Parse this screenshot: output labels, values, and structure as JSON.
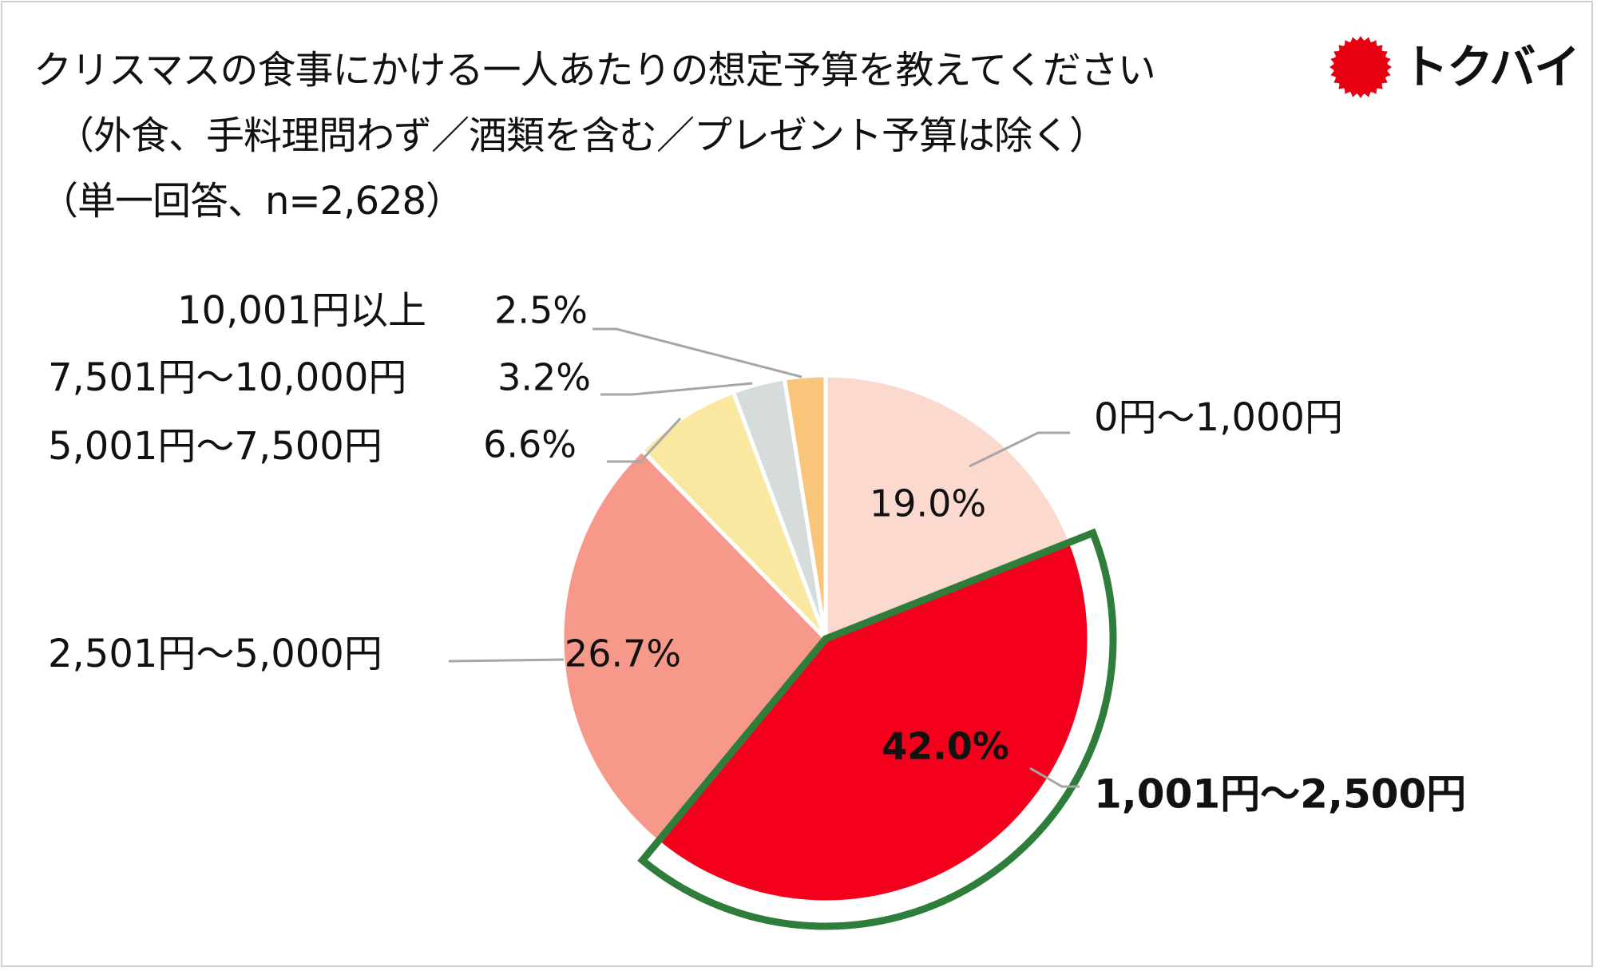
{
  "title_lines": [
    "クリスマスの食事にかける一人あたりの想定予算を教えてください",
    "（外食、手料理問わず／酒類を含む／プレゼント予算は除く）",
    "（単一回答、n=2,628）"
  ],
  "logo": {
    "text": "トクバイ",
    "mark_color": "#e60012"
  },
  "highlight_color": "#2e7d3a",
  "chart_data": {
    "type": "pie",
    "start_angle": "12 o'clock",
    "direction": "clockwise",
    "slices": [
      {
        "label": "0円～1,000円",
        "value": 19.0,
        "value_label": "19.0%",
        "color": "#fcd9cf"
      },
      {
        "label": "1,001円～2,500円",
        "value": 42.0,
        "value_label": "42.0%",
        "color": "#f5001c",
        "highlighted": true
      },
      {
        "label": "2,501円～5,000円",
        "value": 26.7,
        "value_label": "26.7%",
        "color": "#f7998a"
      },
      {
        "label": "5,001円～7,500円",
        "value": 6.6,
        "value_label": "6.6%",
        "color": "#fbe8a0"
      },
      {
        "label": "7,501円～10,000円",
        "value": 3.2,
        "value_label": "3.2%",
        "color": "#d6dcdc"
      },
      {
        "label": "10,001円以上",
        "value": 2.5,
        "value_label": "2.5%",
        "color": "#f9c57a"
      }
    ]
  }
}
